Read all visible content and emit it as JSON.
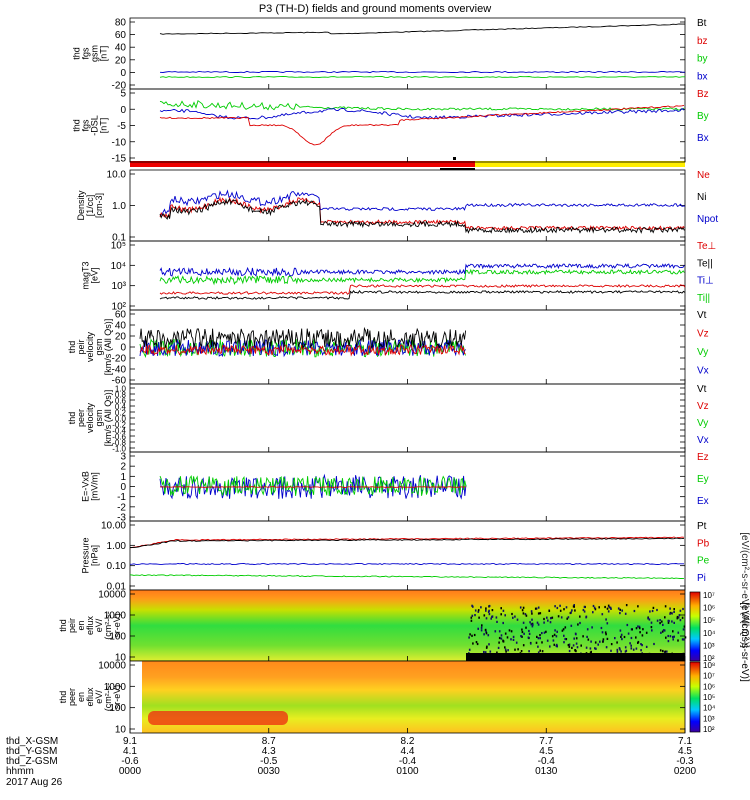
{
  "title": "P3 (TH-D) fields and ground moments overview",
  "colors": {
    "black": "#000000",
    "red": "#dd0000",
    "green": "#00cc00",
    "blue": "#0000cc",
    "yellow": "#ffee00",
    "bar_red": "#ee0000"
  },
  "panels": [
    {
      "id": "fgs-gsm",
      "ylabel": [
        "thd",
        "fgs",
        "gsm",
        "[nT]"
      ],
      "ticks": [
        "80",
        "60",
        "40",
        "20",
        "0",
        "-20"
      ],
      "ylim": [
        -20,
        80
      ],
      "legend": [
        {
          "text": "Bt",
          "color": "black"
        },
        {
          "text": "bz",
          "color": "red"
        },
        {
          "text": "by",
          "color": "green"
        },
        {
          "text": "bx",
          "color": "blue"
        }
      ]
    },
    {
      "id": "fgs-dsl",
      "ylabel": [
        "thd",
        "fgs",
        "-DSL",
        "[nT]"
      ],
      "ticks": [
        "5",
        "0",
        "-5",
        "-10",
        "-15"
      ],
      "ylim": [
        -18,
        5
      ],
      "legend": [
        {
          "text": "Bz",
          "color": "red"
        },
        {
          "text": "By",
          "color": "green"
        },
        {
          "text": "Bx",
          "color": "blue"
        }
      ]
    },
    {
      "id": "density",
      "ylabel": [
        "Density",
        "[1/cc]",
        "[cm-3]"
      ],
      "ticks": [
        "10.0",
        "1.0",
        "0.1"
      ],
      "log": true,
      "ylim": [
        0.1,
        10
      ],
      "legend": [
        {
          "text": "Ne",
          "color": "red"
        },
        {
          "text": "Ni",
          "color": "black"
        },
        {
          "text": "Npot",
          "color": "blue"
        }
      ]
    },
    {
      "id": "temperature",
      "ylabel": [
        "magT3",
        "[eV]"
      ],
      "ticks": [
        "10⁵",
        "10⁴",
        "10³",
        "10²"
      ],
      "log": true,
      "ylim": [
        100,
        100000
      ],
      "legend": [
        {
          "text": "Te⊥",
          "color": "red"
        },
        {
          "text": "Te||",
          "color": "black"
        },
        {
          "text": "Ti⊥",
          "color": "blue"
        },
        {
          "text": "Ti||",
          "color": "green"
        }
      ]
    },
    {
      "id": "peir-velocity",
      "ylabel": [
        "thd",
        "peir",
        "velocity",
        "gsm",
        "[km/s (All Qs)]"
      ],
      "ticks": [
        "60",
        "40",
        "20",
        "0",
        "-20",
        "-40",
        "-60"
      ],
      "ylim": [
        -60,
        60
      ],
      "legend": [
        {
          "text": "Vt",
          "color": "black"
        },
        {
          "text": "Vz",
          "color": "red"
        },
        {
          "text": "Vy",
          "color": "green"
        },
        {
          "text": "Vx",
          "color": "blue"
        }
      ]
    },
    {
      "id": "peer-velocity",
      "ylabel": [
        "thd",
        "peer",
        "velocity",
        "gsm",
        "[km/s (All Qs)]"
      ],
      "ticks": [
        "1.0",
        "0.8",
        "0.6",
        "0.4",
        "0.2",
        "0.0",
        "-0.2",
        "-0.4",
        "-0.6",
        "-0.8",
        "-1.0"
      ],
      "ylim": [
        -1,
        1
      ],
      "legend": [
        {
          "text": "Vt",
          "color": "black"
        },
        {
          "text": "Vz",
          "color": "red"
        },
        {
          "text": "Vy",
          "color": "green"
        },
        {
          "text": "Vx",
          "color": "blue"
        }
      ]
    },
    {
      "id": "e-field",
      "ylabel": [
        "E=-VxB",
        "[mV/m]"
      ],
      "ticks": [
        "3",
        "2",
        "1",
        "0",
        "-1",
        "-2",
        "-3"
      ],
      "ylim": [
        -3,
        3
      ],
      "legend": [
        {
          "text": "Ez",
          "color": "red"
        },
        {
          "text": "Ey",
          "color": "green"
        },
        {
          "text": "Ex",
          "color": "blue"
        }
      ]
    },
    {
      "id": "pressure",
      "ylabel": [
        "Pressure",
        "[nPa]"
      ],
      "ticks": [
        "10.00",
        "1.00",
        "0.10",
        "0.01"
      ],
      "log": true,
      "ylim": [
        0.01,
        10
      ],
      "legend": [
        {
          "text": "Pt",
          "color": "black"
        },
        {
          "text": "Pb",
          "color": "red"
        },
        {
          "text": "Pe",
          "color": "green"
        },
        {
          "text": "Pi",
          "color": "blue"
        }
      ]
    },
    {
      "id": "peir-eflux",
      "ylabel": [
        "thd",
        "peir",
        "en",
        "eflux",
        "eV/",
        "(cm²-s-",
        "sr-eV)"
      ],
      "ticks": [
        "10000",
        "1000",
        "100",
        "10"
      ],
      "spectrogram": true
    },
    {
      "id": "peer-eflux",
      "ylabel": [
        "thd",
        "peer",
        "en",
        "eflux",
        "eV/",
        "(cm²-s-",
        "sr-eV)"
      ],
      "ticks": [
        "10000",
        "1000",
        "100",
        "10"
      ],
      "spectrogram": true
    }
  ],
  "colorbars": [
    {
      "id": "ion",
      "ticks": [
        "10⁷",
        "10⁶",
        "10⁵",
        "10⁴",
        "10³",
        "10²"
      ],
      "label": "[eV/(cm²-s-sr-eV) (All Qs)]"
    },
    {
      "id": "electron",
      "ticks": [
        "10⁸",
        "10⁷",
        "10⁶",
        "10⁵",
        "10⁴",
        "10³",
        "10²"
      ],
      "label": "[eV/(cm²-s-sr-eV)]"
    }
  ],
  "footer": {
    "row_labels": [
      "thd_X-GSM",
      "thd_Y-GSM",
      "thd_Z-GSM",
      "hhmm",
      "2017 Aug 26"
    ],
    "columns": [
      {
        "x": "9.1",
        "y": "4.1",
        "z": "-0.6",
        "t": "0000"
      },
      {
        "x": "8.7",
        "y": "4.3",
        "z": "-0.5",
        "t": "0030"
      },
      {
        "x": "8.2",
        "y": "4.4",
        "z": "-0.4",
        "t": "0100"
      },
      {
        "x": "7.7",
        "y": "4.5",
        "z": "-0.4",
        "t": "0130"
      },
      {
        "x": "7.1",
        "y": "4.5",
        "z": "-0.3",
        "t": "0200"
      }
    ]
  },
  "chart_data": {
    "type": "line",
    "title": "P3 (TH-D) fields and ground moments overview",
    "x": [
      "0000",
      "0030",
      "0100",
      "0130",
      "0200"
    ],
    "xlabel": "hhmm",
    "series": [
      {
        "name": "Bt",
        "panel": "fgs-gsm",
        "values": [
          55,
          52,
          58,
          65,
          72
        ]
      },
      {
        "name": "bz",
        "panel": "fgs-gsm",
        "values": [
          54,
          50,
          56,
          63,
          70
        ]
      },
      {
        "name": "by",
        "panel": "fgs-gsm",
        "values": [
          -2,
          -1,
          -2,
          -1,
          -1
        ]
      },
      {
        "name": "bx",
        "panel": "fgs-gsm",
        "values": [
          3,
          2,
          2,
          3,
          3
        ]
      },
      {
        "name": "Ni",
        "panel": "density",
        "values": [
          0.5,
          0.6,
          0.3,
          0.2,
          0.25
        ]
      },
      {
        "name": "Npot",
        "panel": "density",
        "values": [
          0.6,
          1.2,
          0.8,
          0.75,
          0.9
        ]
      },
      {
        "name": "Pb",
        "panel": "pressure",
        "values": [
          1.0,
          1.4,
          1.4,
          1.6,
          2.0
        ]
      },
      {
        "name": "Pi",
        "panel": "pressure",
        "values": [
          0.2,
          0.17,
          0.16,
          0.16,
          0.17
        ]
      },
      {
        "name": "Pe",
        "panel": "pressure",
        "values": [
          0.06,
          0.04,
          0.04,
          0.03,
          0.03
        ]
      }
    ]
  }
}
